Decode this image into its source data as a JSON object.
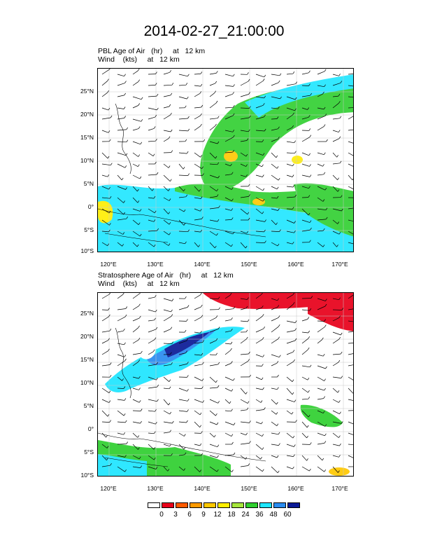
{
  "title": "2014-02-27_21:00:00",
  "panels": [
    {
      "field_line": "PBL Age of Air   (hr)     at   12 km",
      "wind_line": "Wind    (kts)     at   12 km"
    },
    {
      "field_line": "Stratosphere Age of Air   (hr)     at   12 km",
      "wind_line": "Wind    (kts)     at   12 km"
    }
  ],
  "axes": {
    "lat_labels": [
      "25°N",
      "20°N",
      "15°N",
      "10°N",
      "5°N",
      "0°",
      "5°S",
      "10°S"
    ],
    "lon_labels": [
      "120°E",
      "130°E",
      "140°E",
      "150°E",
      "160°E",
      "170°E"
    ]
  },
  "legend": {
    "labels": [
      "0",
      "3",
      "6",
      "9",
      "12",
      "18",
      "24",
      "36",
      "48",
      "60"
    ],
    "colors": [
      "#ffffff",
      "#e8001a",
      "#ff5a00",
      "#ff9a00",
      "#ffc800",
      "#ffee00",
      "#a6e63c",
      "#2fcf2f",
      "#1ee6ff",
      "#2a8cf0",
      "#0a1a96"
    ]
  }
}
